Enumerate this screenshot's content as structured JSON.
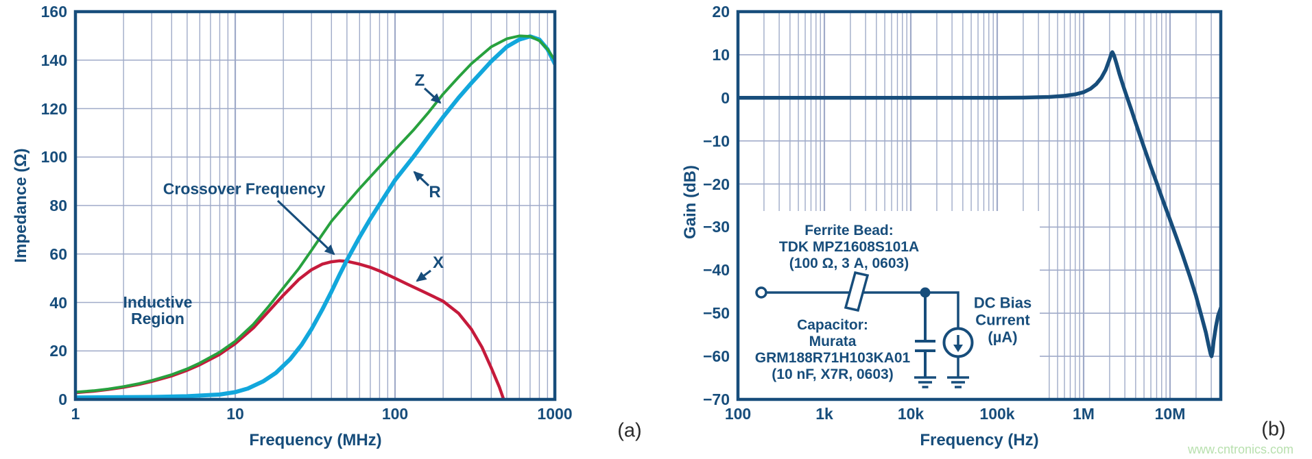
{
  "figure": {
    "panel_a_label": "(a)",
    "panel_b_label": "(b)",
    "watermark": "www.cntronics.com",
    "colors": {
      "axis_text": "#174d7b",
      "grid": "#9faac8",
      "caption_text": "#2b2b2b",
      "watermark_green": "#b8e0ae",
      "impedance_z_green": "#28a13e",
      "resistance_r_cyan": "#12a7dc",
      "reactance_x_red": "#c51a3b",
      "gain_curve_navy": "#174d7b"
    }
  },
  "chart_data": [
    {
      "id": "a",
      "type": "line",
      "x_scale": "log",
      "xlabel": "Frequency (MHz)",
      "ylabel": "Impedance (Ω)",
      "xlim": [
        1,
        1000
      ],
      "ylim": [
        0,
        160
      ],
      "grid": true,
      "legend_position": "none",
      "x_ticks": [
        {
          "v": 1,
          "label": "1"
        },
        {
          "v": 10,
          "label": "10"
        },
        {
          "v": 100,
          "label": "100"
        },
        {
          "v": 1000,
          "label": "1000"
        }
      ],
      "y_ticks": [
        {
          "v": 0,
          "label": "0"
        },
        {
          "v": 20,
          "label": "20"
        },
        {
          "v": 40,
          "label": "40"
        },
        {
          "v": 60,
          "label": "60"
        },
        {
          "v": 80,
          "label": "80"
        },
        {
          "v": 100,
          "label": "100"
        },
        {
          "v": 120,
          "label": "120"
        },
        {
          "v": 140,
          "label": "140"
        },
        {
          "v": 160,
          "label": "160"
        }
      ],
      "series": [
        {
          "name": "X",
          "color": "#c51a3b",
          "width": 4.5,
          "points": [
            [
              1,
              2.8
            ],
            [
              1.3,
              3.4
            ],
            [
              1.6,
              4.1
            ],
            [
              2,
              5
            ],
            [
              2.5,
              6.2
            ],
            [
              3,
              7.4
            ],
            [
              4,
              9.7
            ],
            [
              5,
              12
            ],
            [
              6,
              14.3
            ],
            [
              8,
              18.6
            ],
            [
              10,
              23
            ],
            [
              13,
              29.5
            ],
            [
              16,
              36
            ],
            [
              20,
              43
            ],
            [
              25,
              49.5
            ],
            [
              30,
              53.5
            ],
            [
              35,
              55.8
            ],
            [
              40,
              56.8
            ],
            [
              45,
              57.2
            ],
            [
              50,
              57
            ],
            [
              60,
              55.8
            ],
            [
              70,
              54.5
            ],
            [
              80,
              53
            ],
            [
              100,
              50
            ],
            [
              120,
              47.5
            ],
            [
              150,
              44.5
            ],
            [
              200,
              40.5
            ],
            [
              250,
              35.5
            ],
            [
              300,
              29
            ],
            [
              350,
              21.5
            ],
            [
              400,
              13
            ],
            [
              450,
              5
            ],
            [
              490,
              -2
            ],
            [
              520,
              -10
            ]
          ]
        },
        {
          "name": "R",
          "color": "#12a7dc",
          "width": 6,
          "points": [
            [
              1,
              0.8
            ],
            [
              2,
              0.9
            ],
            [
              3,
              1
            ],
            [
              5,
              1.3
            ],
            [
              8,
              2
            ],
            [
              10,
              3
            ],
            [
              12,
              4.5
            ],
            [
              15,
              7.5
            ],
            [
              18,
              11
            ],
            [
              22,
              16.5
            ],
            [
              26,
              22.5
            ],
            [
              30,
              29
            ],
            [
              35,
              37
            ],
            [
              40,
              44.5
            ],
            [
              45,
              51.5
            ],
            [
              50,
              57.5
            ],
            [
              60,
              67
            ],
            [
              70,
              74.5
            ],
            [
              80,
              80.5
            ],
            [
              100,
              90.5
            ],
            [
              130,
              100
            ],
            [
              160,
              108
            ],
            [
              200,
              116.5
            ],
            [
              250,
              124.5
            ],
            [
              300,
              130.5
            ],
            [
              400,
              139.5
            ],
            [
              500,
              145.5
            ],
            [
              600,
              148.5
            ],
            [
              700,
              149.8
            ],
            [
              800,
              148.5
            ],
            [
              900,
              144.5
            ],
            [
              1000,
              138.5
            ]
          ]
        },
        {
          "name": "Z",
          "color": "#28a13e",
          "width": 4,
          "points": [
            [
              1,
              3
            ],
            [
              1.3,
              3.6
            ],
            [
              1.6,
              4.3
            ],
            [
              2,
              5.3
            ],
            [
              2.5,
              6.5
            ],
            [
              3,
              7.8
            ],
            [
              4,
              10.2
            ],
            [
              5,
              12.6
            ],
            [
              6,
              15
            ],
            [
              8,
              19.5
            ],
            [
              10,
              24
            ],
            [
              13,
              31
            ],
            [
              16,
              38
            ],
            [
              20,
              46
            ],
            [
              25,
              54
            ],
            [
              30,
              61.5
            ],
            [
              35,
              68
            ],
            [
              40,
              73.5
            ],
            [
              50,
              81
            ],
            [
              60,
              87
            ],
            [
              80,
              96
            ],
            [
              100,
              103
            ],
            [
              130,
              111
            ],
            [
              160,
              118
            ],
            [
              200,
              126
            ],
            [
              250,
              133
            ],
            [
              300,
              138.5
            ],
            [
              400,
              145.5
            ],
            [
              500,
              148.8
            ],
            [
              600,
              150
            ],
            [
              700,
              149.8
            ],
            [
              800,
              148
            ],
            [
              900,
              144.5
            ],
            [
              1000,
              140
            ]
          ]
        }
      ],
      "annotations": {
        "crossover": "Crossover Frequency",
        "inductive_line1": "Inductive",
        "inductive_line2": "Region",
        "z_label": "Z",
        "r_label": "R",
        "x_label": "X"
      }
    },
    {
      "id": "b",
      "type": "line",
      "x_scale": "log",
      "xlabel": "Frequency (Hz)",
      "ylabel": "Gain (dB)",
      "xlim": [
        100,
        38600000
      ],
      "ylim": [
        -70,
        20
      ],
      "grid": true,
      "legend_position": "none",
      "x_ticks": [
        {
          "v": 100,
          "label": "100"
        },
        {
          "v": 1000,
          "label": "1k"
        },
        {
          "v": 10000,
          "label": "10k"
        },
        {
          "v": 100000,
          "label": "100k"
        },
        {
          "v": 1000000,
          "label": "1M"
        },
        {
          "v": 10000000,
          "label": "10M"
        }
      ],
      "y_ticks": [
        {
          "v": 20,
          "label": "20"
        },
        {
          "v": 10,
          "label": "10"
        },
        {
          "v": 0,
          "label": "0"
        },
        {
          "v": -10,
          "label": "−10"
        },
        {
          "v": -20,
          "label": "−20"
        },
        {
          "v": -30,
          "label": "−30"
        },
        {
          "v": -40,
          "label": "−40"
        },
        {
          "v": -50,
          "label": "−50"
        },
        {
          "v": -60,
          "label": "−60"
        },
        {
          "v": -70,
          "label": "−70"
        }
      ],
      "series": [
        {
          "name": "Gain",
          "color": "#174d7b",
          "width": 5.5,
          "points": [
            [
              100,
              0
            ],
            [
              1000,
              0
            ],
            [
              10000,
              0
            ],
            [
              100000,
              0
            ],
            [
              200000,
              0.05
            ],
            [
              400000,
              0.2
            ],
            [
              600000,
              0.45
            ],
            [
              800000,
              0.8
            ],
            [
              1000000,
              1.3
            ],
            [
              1200000,
              2.1
            ],
            [
              1400000,
              3.2
            ],
            [
              1600000,
              4.6
            ],
            [
              1800000,
              6.5
            ],
            [
              2000000,
              9
            ],
            [
              2100000,
              10.3
            ],
            [
              2150000,
              10.6
            ],
            [
              2250000,
              9.8
            ],
            [
              2400000,
              8
            ],
            [
              2600000,
              5.5
            ],
            [
              2900000,
              2.5
            ],
            [
              3200000,
              0
            ],
            [
              3600000,
              -3
            ],
            [
              4000000,
              -5.8
            ],
            [
              4500000,
              -8.8
            ],
            [
              5000000,
              -11.5
            ],
            [
              6000000,
              -16
            ],
            [
              7000000,
              -19.7
            ],
            [
              8000000,
              -23
            ],
            [
              9000000,
              -25.8
            ],
            [
              10000000,
              -28.3
            ],
            [
              12000000,
              -32.7
            ],
            [
              14000000,
              -36.5
            ],
            [
              17000000,
              -41.5
            ],
            [
              20000000,
              -46
            ],
            [
              23000000,
              -50.5
            ],
            [
              26000000,
              -54.5
            ],
            [
              28000000,
              -57.5
            ],
            [
              29500000,
              -59.5
            ],
            [
              30200000,
              -60
            ],
            [
              31000000,
              -59
            ],
            [
              32000000,
              -56.5
            ],
            [
              34000000,
              -53
            ],
            [
              36000000,
              -50.5
            ],
            [
              38000000,
              -49.2
            ],
            [
              38600000,
              -48.8
            ]
          ]
        }
      ],
      "inset": {
        "ferrite": [
          "Ferrite Bead:",
          "TDK MPZ1608S101A",
          "(100 Ω, 3 A, 0603)"
        ],
        "capacitor": [
          "Capacitor:",
          "Murata",
          "GRM188R71H103KA01",
          "(10 nF, X7R, 0603)"
        ],
        "bias": [
          "DC Bias",
          "Current",
          "(µA)"
        ]
      }
    }
  ]
}
